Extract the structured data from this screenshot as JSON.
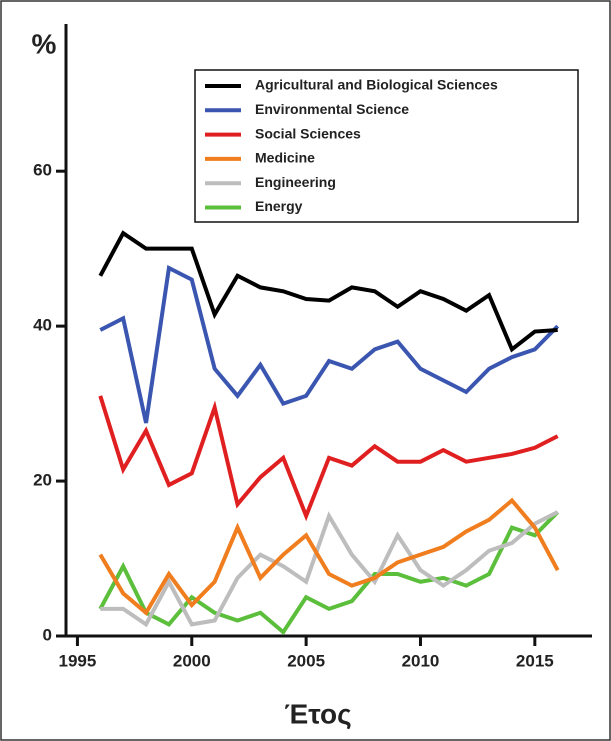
{
  "chart_data": {
    "type": "line",
    "y_label": "%",
    "x_label": "Έτος",
    "x": [
      1996,
      1997,
      1998,
      1999,
      2000,
      2001,
      2002,
      2003,
      2004,
      2005,
      2006,
      2007,
      2008,
      2009,
      2010,
      2011,
      2012,
      2013,
      2014,
      2015,
      2016
    ],
    "series": [
      {
        "name": "Agricultural and Biological Sciences",
        "color": "#000000",
        "values": [
          46.5,
          52,
          50,
          50,
          50,
          41.5,
          46.5,
          45,
          44.5,
          43.5,
          43.3,
          45,
          44.5,
          42.5,
          44.5,
          43.5,
          42,
          44,
          37,
          39.3,
          39.5
        ]
      },
      {
        "name": "Environmental Science",
        "color": "#3a56b0",
        "values": [
          39.5,
          41,
          27.5,
          47.5,
          46,
          34.5,
          31,
          35,
          30,
          31,
          35.5,
          34.5,
          37,
          38,
          34.5,
          33,
          31.5,
          34.5,
          36,
          37,
          40
        ]
      },
      {
        "name": "Social Sciences",
        "color": "#e02020",
        "values": [
          31,
          21.5,
          26.5,
          19.5,
          21,
          29.5,
          17,
          20.5,
          23,
          15.5,
          23,
          22,
          24.5,
          22.5,
          22.5,
          24,
          22.5,
          23,
          23.5,
          24.3,
          25.8
        ]
      },
      {
        "name": "Medicine",
        "color": "#f07d1e",
        "values": [
          10.5,
          5.5,
          3,
          8,
          4,
          7,
          14,
          7.5,
          10.5,
          13,
          8,
          6.5,
          7.5,
          9.5,
          10.5,
          11.5,
          13.5,
          15,
          17.5,
          14,
          8.5
        ]
      },
      {
        "name": "Engineering",
        "color": "#bdbdbd",
        "values": [
          3.5,
          3.5,
          1.5,
          7,
          1.5,
          2,
          7.5,
          10.5,
          9,
          7,
          15.5,
          10.5,
          7,
          13,
          8.5,
          6.5,
          8.5,
          11,
          12,
          14.5,
          16
        ]
      },
      {
        "name": "Energy",
        "color": "#5cbf3c",
        "values": [
          3.5,
          9,
          3,
          1.5,
          5,
          3,
          2,
          3,
          0.5,
          5,
          3.5,
          4.5,
          8,
          8,
          7,
          7.5,
          6.5,
          8,
          14,
          13,
          16
        ]
      }
    ],
    "xlim": [
      1994.5,
      2017.5
    ],
    "xticks": [
      1995,
      2000,
      2005,
      2010,
      2015
    ],
    "ylim": [
      0,
      79
    ],
    "yticks": [
      0,
      20,
      40,
      60
    ],
    "legend": "upper right"
  }
}
